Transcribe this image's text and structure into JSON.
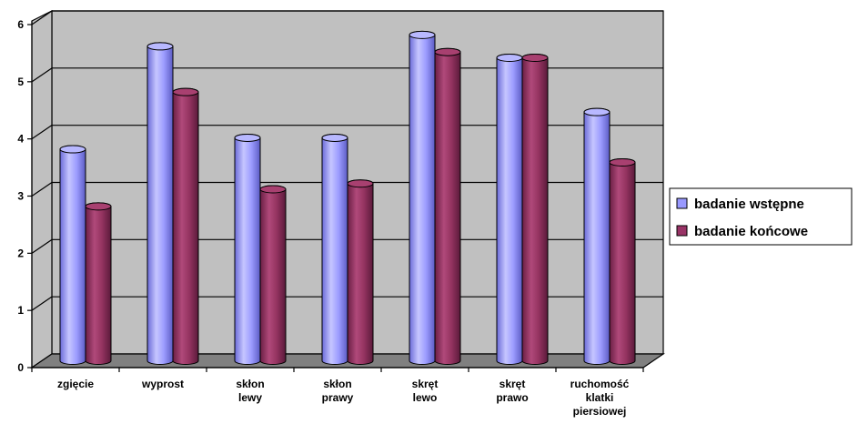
{
  "chart_data": {
    "type": "bar",
    "categories": [
      [
        "zgięcie"
      ],
      [
        "wyprost"
      ],
      [
        "skłon",
        "lewy"
      ],
      [
        "skłon",
        "prawy"
      ],
      [
        "skręt",
        "lewo"
      ],
      [
        "skręt",
        "prawo"
      ],
      [
        "ruchomość",
        "klatki",
        "piersiowej"
      ]
    ],
    "series": [
      {
        "name": "badanie wstępne",
        "values": [
          3.7,
          5.5,
          3.9,
          3.9,
          5.7,
          5.3,
          4.35
        ]
      },
      {
        "name": "badanie końcowe",
        "values": [
          2.7,
          4.7,
          3.0,
          3.1,
          5.4,
          5.3,
          3.47
        ]
      }
    ],
    "ylim": [
      0,
      6
    ],
    "yticks": [
      "0",
      "1",
      "2",
      "3",
      "4",
      "5",
      "6"
    ],
    "grid": true,
    "legend_position": "right",
    "colors": {
      "series_1": "#9999ff",
      "series_2": "#993366",
      "wall": "#c0c0c0",
      "floor": "#808080"
    }
  }
}
